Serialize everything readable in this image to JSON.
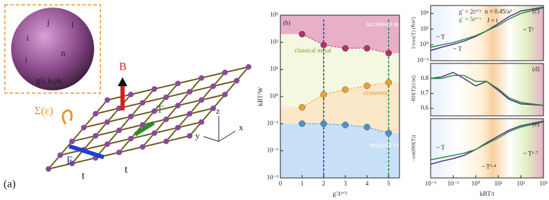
{
  "illustration": {
    "panel_label": "(a)",
    "sigma": "Σ(ε)",
    "b_field": "B",
    "t_grad": "T",
    "e_field": "E",
    "hop1": "t",
    "hop2": "t",
    "axis_x": "x",
    "axis_y": "y",
    "axis_z": "z",
    "inset_j": "j",
    "inset_l": "l",
    "inset_i1": "i",
    "inset_n": "n",
    "inset_i2": "i",
    "inset_coupling": "gij,kφk"
  },
  "chart_data": [
    {
      "type": "line",
      "panel_label": "(b)",
      "xlabel": "g′/t³ᐟ²",
      "ylabel": "kBT/W",
      "xscale": "linear",
      "yscale": "log",
      "xlim": [
        0,
        5.5
      ],
      "ylim": [
        0.001,
        1000
      ],
      "xticks": [
        0,
        1,
        2,
        3,
        4,
        5
      ],
      "yticks": [
        {
          "value": 0.001,
          "label": "10⁻³"
        },
        {
          "value": 0.01,
          "label": "10⁻²"
        },
        {
          "value": 0.1,
          "label": "10⁻¹"
        },
        {
          "value": 1,
          "label": "10⁰"
        },
        {
          "value": 10,
          "label": "10¹"
        },
        {
          "value": 100,
          "label": "10²"
        },
        {
          "value": 1000,
          "label": "10³"
        }
      ],
      "x": [
        1,
        2,
        3,
        4,
        5
      ],
      "series": [
        {
          "color": "#b5306b",
          "values": [
            200,
            80,
            60,
            60,
            40
          ]
        },
        {
          "color": "#f0a030",
          "values": [
            0.4,
            1.2,
            1.8,
            2.5,
            3.3
          ]
        },
        {
          "color": "#4a90d0",
          "values": [
            0.1,
            0.1,
            0.09,
            0.075,
            0.045
          ]
        }
      ],
      "vlines": [
        2,
        5
      ],
      "vline_colors": [
        "#3a3a9a",
        "#2a8a3a"
      ],
      "annotations": [
        "incoherent metal",
        "classical metal",
        "crossover",
        "marginal Fermi liquid"
      ]
    },
    {
      "type": "line",
      "panel_label": "(c)",
      "ylabel": "1/σxx(T) (ℏ/e²)",
      "xscale": "log",
      "yscale": "log",
      "xlim": [
        0.01,
        1000
      ],
      "ylim": [
        0.01,
        100000
      ],
      "yticks": [
        {
          "value": 0.01,
          "label": "10⁻²"
        },
        {
          "value": 1,
          "label": "10⁰"
        },
        {
          "value": 100,
          "label": "10²"
        },
        {
          "value": 10000,
          "label": "10⁴"
        }
      ],
      "x": [
        0.01,
        0.03,
        0.1,
        0.3,
        1,
        3,
        10,
        30,
        100,
        1000
      ],
      "series": [
        {
          "name": "g′ = 2t³ᐟ²",
          "color": "#4b2a8a",
          "values": [
            0.2,
            0.5,
            1.2,
            3,
            12,
            60,
            500,
            4000,
            20000,
            60000
          ]
        },
        {
          "name": "g′ = 5t³ᐟ²",
          "color": "#2a8a3a",
          "values": [
            0.5,
            1,
            2,
            5,
            15,
            60,
            300,
            2000,
            10000,
            50000
          ]
        }
      ],
      "annotations": [
        "n = 0.45/a²",
        "J = t",
        "~ T",
        "~ T",
        "~ T²"
      ]
    },
    {
      "type": "line",
      "panel_label": "(d)",
      "ylabel": "−RH(T)(1/|e|)",
      "xscale": "log",
      "yscale": "linear",
      "xlim": [
        0.01,
        1000
      ],
      "ylim": [
        0.55,
        0.9
      ],
      "yticks": [
        0.6,
        0.7,
        0.8
      ],
      "x": [
        0.01,
        0.03,
        0.1,
        0.3,
        1,
        3,
        10,
        30,
        100,
        1000
      ],
      "series": [
        {
          "color": "#4b2a8a",
          "values": [
            0.8,
            0.81,
            0.84,
            0.8,
            0.75,
            0.78,
            0.72,
            0.66,
            0.63,
            0.62
          ]
        },
        {
          "color": "#2a8a3a",
          "values": [
            0.8,
            0.8,
            0.82,
            0.82,
            0.78,
            0.78,
            0.73,
            0.67,
            0.64,
            0.62
          ]
        }
      ],
      "annotations": []
    },
    {
      "type": "line",
      "panel_label": "(e)",
      "xlabel": "kBT/t",
      "ylabel": "−cot(ΘH(T))",
      "xscale": "log",
      "yscale": "log",
      "xlim": [
        0.01,
        1000
      ],
      "ylim": [
        0.03,
        300
      ],
      "xticks": [
        {
          "value": 0.01,
          "label": "10⁻²"
        },
        {
          "value": 0.1,
          "label": "10⁻¹"
        },
        {
          "value": 1,
          "label": "10⁰"
        },
        {
          "value": 10,
          "label": "10¹"
        },
        {
          "value": 100,
          "label": "10²"
        },
        {
          "value": 1000,
          "label": "10³"
        }
      ],
      "x": [
        0.01,
        0.03,
        0.1,
        0.3,
        1,
        3,
        10,
        30,
        100,
        1000
      ],
      "series": [
        {
          "color": "#4b2a8a",
          "values": [
            0.25,
            0.4,
            0.6,
            1,
            2.5,
            7,
            20,
            50,
            100,
            200
          ]
        },
        {
          "color": "#2a8a3a",
          "values": [
            0.5,
            0.7,
            1,
            1.4,
            2.5,
            6,
            15,
            40,
            80,
            180
          ]
        }
      ],
      "annotations": [
        "~ T",
        "~ T¹·⁴",
        "~ T¹·⁷"
      ]
    }
  ]
}
